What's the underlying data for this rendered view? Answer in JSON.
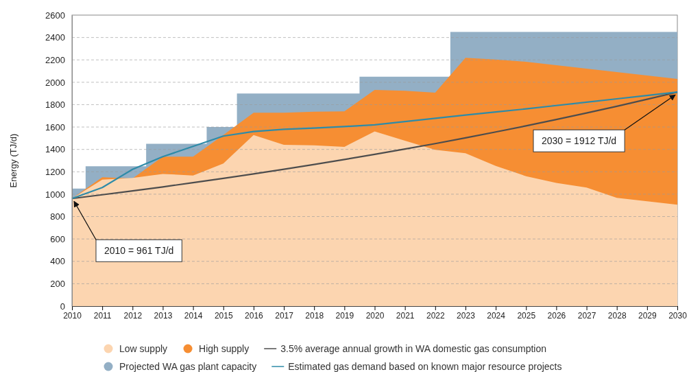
{
  "chart_data": {
    "type": "area",
    "ylabel": "Energy (TJ/d)",
    "xlim": [
      2010,
      2030
    ],
    "ylim": [
      0,
      2600
    ],
    "xticks": [
      2010,
      2011,
      2012,
      2013,
      2014,
      2015,
      2016,
      2017,
      2018,
      2019,
      2020,
      2021,
      2022,
      2023,
      2024,
      2025,
      2026,
      2027,
      2028,
      2029,
      2030
    ],
    "yticks": [
      0,
      200,
      400,
      600,
      800,
      1000,
      1200,
      1400,
      1600,
      1800,
      2000,
      2200,
      2400,
      2600
    ],
    "grid": "y",
    "legend": "bottom",
    "x": [
      2010,
      2011,
      2012,
      2013,
      2014,
      2015,
      2016,
      2017,
      2018,
      2019,
      2020,
      2021,
      2022,
      2023,
      2024,
      2025,
      2026,
      2027,
      2028,
      2029,
      2030
    ],
    "series": [
      {
        "name": "Low supply",
        "color": "#fcd5b0",
        "values": [
          961,
          1130,
          1145,
          1181,
          1167,
          1274,
          1529,
          1441,
          1437,
          1423,
          1560,
          1478,
          1396,
          1366,
          1253,
          1161,
          1100,
          1059,
          967,
          936,
          906
        ]
      },
      {
        "name": "High supply",
        "color": "#f68e33",
        "values": [
          961,
          1151,
          1140,
          1335,
          1335,
          1529,
          1727,
          1727,
          1737,
          1740,
          1932,
          1924,
          1907,
          2218,
          2203,
          2183,
          2152,
          2122,
          2091,
          2060,
          2030
        ]
      },
      {
        "name": "3.5% average annual growth in WA domestic gas consumption",
        "type": "line",
        "color": "#4d4d4d",
        "values": [
          961,
          995,
          1029,
          1065,
          1103,
          1141,
          1181,
          1223,
          1265,
          1310,
          1356,
          1403,
          1452,
          1503,
          1556,
          1610,
          1667,
          1725,
          1785,
          1848,
          1912
        ]
      },
      {
        "name": "Projected WA gas plant capacity",
        "color": "#93afc5",
        "x": [
          2010,
          2010.45,
          2010.45,
          2012.45,
          2012.45,
          2014.45,
          2014.45,
          2015.45,
          2015.45,
          2019.5,
          2019.5,
          2022.5,
          2022.5,
          2030
        ],
        "values": [
          1050,
          1050,
          1250,
          1250,
          1450,
          1450,
          1600,
          1600,
          1900,
          1900,
          2050,
          2050,
          2450,
          2450
        ]
      },
      {
        "name": "Estimated gas demand based on known major resource projects",
        "type": "line",
        "color": "#2e8ba8",
        "values": [
          961,
          1059,
          1222,
          1335,
          1427,
          1519,
          1560,
          1580,
          1590,
          1604,
          1620,
          1649,
          1678,
          1707,
          1735,
          1762,
          1792,
          1822,
          1852,
          1882,
          1912
        ]
      }
    ],
    "annotations": [
      {
        "text": "2010 = 961 TJ/d",
        "x": 2010,
        "y": 961
      },
      {
        "text": "2030 = 1912 TJ/d",
        "x": 2030,
        "y": 1912
      }
    ]
  }
}
